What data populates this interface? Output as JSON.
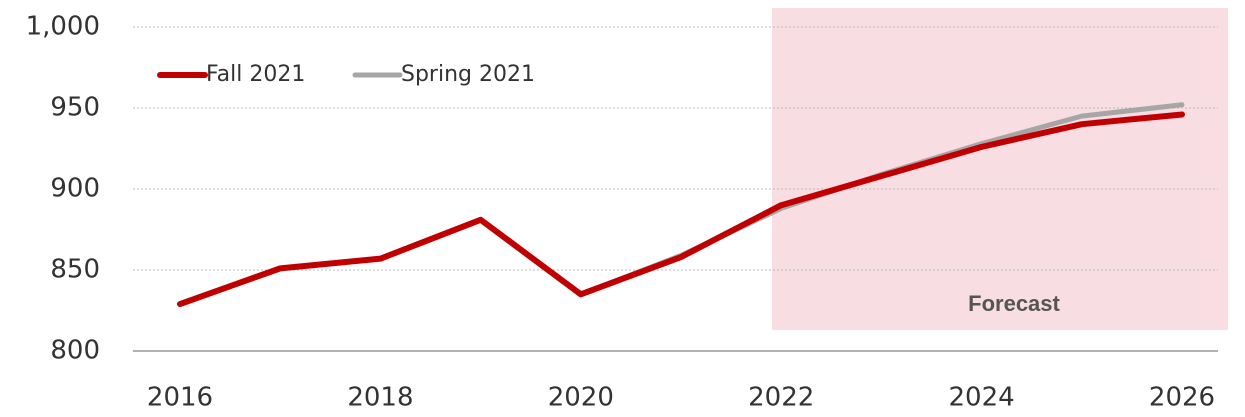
{
  "chart_data": {
    "type": "line",
    "x": [
      2016,
      2017,
      2018,
      2019,
      2020,
      2021,
      2022,
      2023,
      2024,
      2025,
      2026
    ],
    "series": [
      {
        "name": "Fall 2021",
        "color": "#c00000",
        "values": [
          829,
          851,
          857,
          881,
          835,
          858,
          890,
          908,
          926,
          940,
          946
        ]
      },
      {
        "name": "Spring 2021",
        "color": "#a6a6a6",
        "values": [
          null,
          null,
          null,
          null,
          835,
          859,
          888,
          909,
          928,
          945,
          952
        ]
      }
    ],
    "xlim": [
      2016,
      2026
    ],
    "xticks": [
      2016,
      2018,
      2020,
      2022,
      2024,
      2026
    ],
    "ylim": [
      800,
      1000
    ],
    "yticks": [
      800,
      850,
      900,
      950,
      {
        "value": 1000,
        "label": "1,000"
      }
    ],
    "grid": true,
    "legend": "top-left",
    "annotation": "Forecast"
  }
}
